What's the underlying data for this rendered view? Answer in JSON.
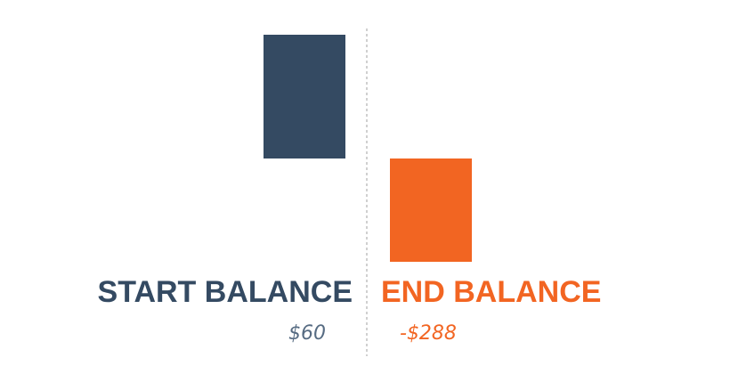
{
  "colors": {
    "start": "#344a62",
    "start_value": "#566b82",
    "end": "#f26522",
    "divider": "#b0b0b0"
  },
  "labels": {
    "start": "START BALANCE",
    "end": "END BALANCE"
  },
  "values_text": {
    "start": "$60",
    "end": "-$288"
  },
  "chart_data": {
    "type": "bar",
    "categories": [
      "START BALANCE",
      "END BALANCE"
    ],
    "values": [
      60,
      -288
    ],
    "data_labels": [
      "$60",
      "-$288"
    ],
    "grid": false,
    "legend": "none"
  }
}
